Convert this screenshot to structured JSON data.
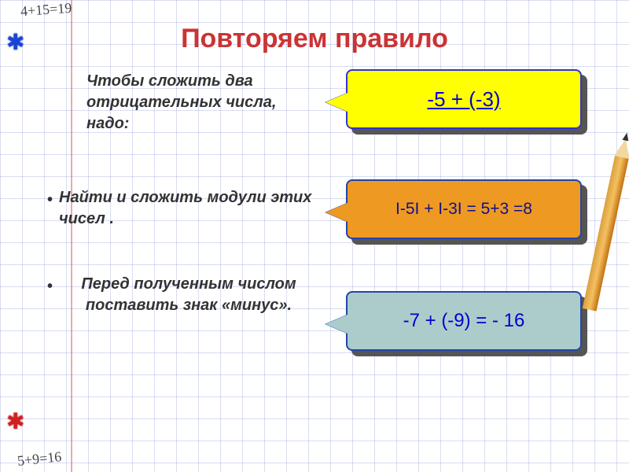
{
  "title": "Повторяем правило",
  "intro": "Чтобы сложить два отрицательных числа, надо:",
  "bullets": [
    "Найти и сложить модули этих чисел .",
    "Перед полученным числом поставить знак «минус»."
  ],
  "callouts": [
    {
      "text": "-5 + (-3)",
      "bg": "#ffff00",
      "border": "#3333cc",
      "textColor": "#0000cc",
      "underline": true
    },
    {
      "text": "I-5I + I-3I = 5+3 =8",
      "bg": "#ee9922",
      "border": "#2244aa",
      "textColor": "#111188",
      "underline": false
    },
    {
      "text": "-7 + (-9) = - 16",
      "bg": "#accccc",
      "border": "#2244aa",
      "textColor": "#0000cc",
      "underline": false
    }
  ],
  "handwriting": {
    "top": "4+15=19",
    "bottom": "5+9=16"
  },
  "styling": {
    "title_color": "#cc3333",
    "title_fontsize": 34,
    "body_fontsize": 20,
    "grid_color": "rgba(100,120,200,0.25)",
    "grid_size": 28,
    "margin_line_color": "rgba(220,80,100,0.5)",
    "callout_shadow": "#555555",
    "splat_blue": "#1a44d0",
    "splat_red": "#cc2222"
  }
}
